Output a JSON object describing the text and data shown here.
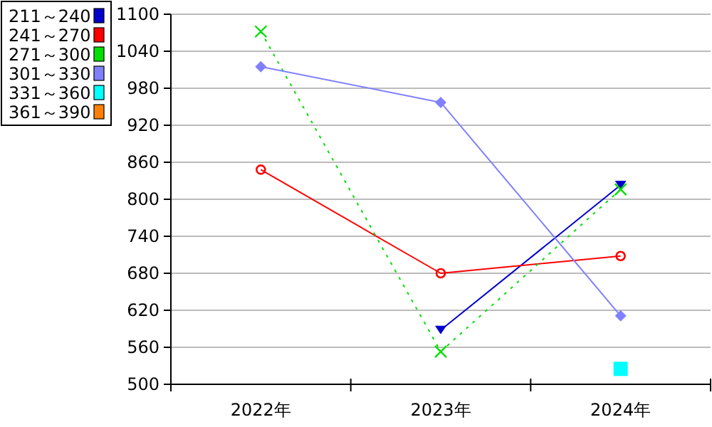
{
  "chart_data": {
    "type": "line",
    "categories": [
      "2022年",
      "2023年",
      "2024年"
    ],
    "ylim": [
      500,
      1100
    ],
    "yticks": [
      500,
      560,
      620,
      680,
      740,
      800,
      860,
      920,
      980,
      1040,
      1100
    ],
    "grid": "y",
    "legend": "top left",
    "series": [
      {
        "name": "211～240",
        "color": "#0000cc",
        "marker": "triangle",
        "line_style": "solid",
        "values": [
          null,
          588,
          823
        ]
      },
      {
        "name": "241～270",
        "color": "#ff0000",
        "marker": "circle",
        "line_style": "solid",
        "values": [
          848,
          680,
          708
        ]
      },
      {
        "name": "271～300",
        "color": "#00e000",
        "marker": "cross",
        "line_style": "dotted",
        "values": [
          1072,
          553,
          816
        ]
      },
      {
        "name": "301～330",
        "color": "#8080ff",
        "marker": "diamond",
        "line_style": "solid",
        "values": [
          1015,
          957,
          611
        ]
      },
      {
        "name": "331～360",
        "color": "#00ffff",
        "marker": "square",
        "line_style": "solid",
        "values": [
          null,
          null,
          525
        ]
      },
      {
        "name": "361～390",
        "color": "#ff8000",
        "values": [
          null,
          null,
          null
        ]
      }
    ]
  }
}
